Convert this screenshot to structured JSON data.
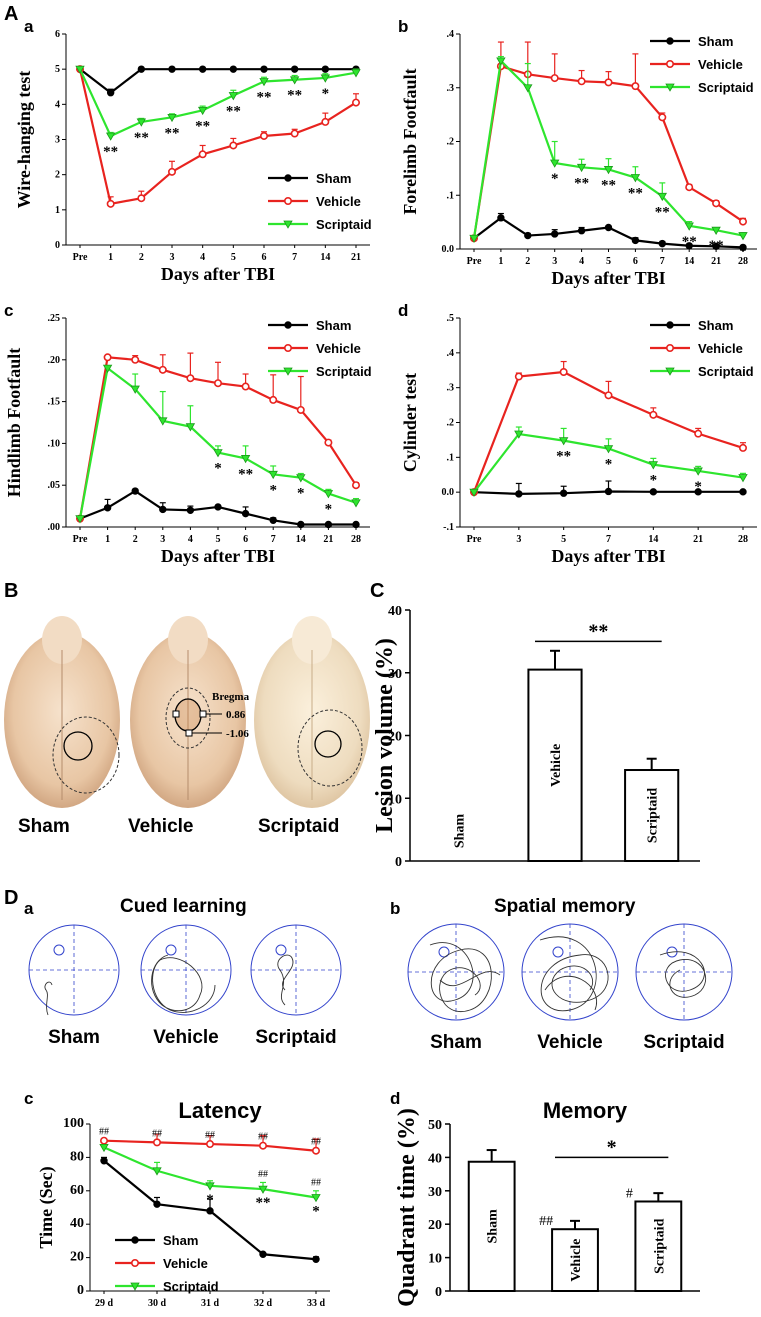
{
  "panel_labels": {
    "A": "A",
    "B": "B",
    "C": "C",
    "D": "D",
    "a": "a",
    "b": "b",
    "c": "c",
    "d": "d"
  },
  "colors": {
    "sham": "#000000",
    "vehicle": "#e8231f",
    "scriptaid": "#2ee52e",
    "track_circle": "#3344cc"
  },
  "chart_data": [
    {
      "id": "Aa",
      "type": "line",
      "xlabel": "Days after TBI",
      "ylabel": "Wire-hanging test",
      "categories": [
        "Pre",
        "1",
        "2",
        "3",
        "4",
        "5",
        "6",
        "7",
        "14",
        "21"
      ],
      "yticks": [
        "0",
        "1",
        "2",
        "3",
        "4",
        "5",
        "6"
      ],
      "ylim": [
        0,
        6
      ],
      "legend_position": "bottom-right",
      "series": [
        {
          "name": "Sham",
          "key": "sham",
          "values": [
            5,
            4.33,
            5,
            5,
            5,
            5,
            5,
            5,
            5,
            5
          ],
          "errors": [
            0,
            0.1,
            0,
            0,
            0,
            0,
            0,
            0,
            0,
            0
          ]
        },
        {
          "name": "Vehicle",
          "key": "vehicle",
          "values": [
            5,
            1.17,
            1.33,
            2.08,
            2.58,
            2.83,
            3.1,
            3.17,
            3.5,
            4.05
          ],
          "errors": [
            0,
            0.2,
            0.2,
            0.3,
            0.25,
            0.2,
            0.12,
            0.12,
            0.25,
            0.25
          ]
        },
        {
          "name": "Scriptaid",
          "key": "scriptaid",
          "values": [
            5,
            3.1,
            3.5,
            3.63,
            3.83,
            4.25,
            4.65,
            4.7,
            4.75,
            4.9
          ],
          "errors": [
            0,
            0.1,
            0.1,
            0.1,
            0.12,
            0.15,
            0.12,
            0.12,
            0.12,
            0.1
          ]
        }
      ],
      "annotations": [
        {
          "i": 1,
          "text": "**"
        },
        {
          "i": 2,
          "text": "**"
        },
        {
          "i": 3,
          "text": "**"
        },
        {
          "i": 4,
          "text": "**"
        },
        {
          "i": 5,
          "text": "**"
        },
        {
          "i": 6,
          "text": "**"
        },
        {
          "i": 7,
          "text": "**"
        },
        {
          "i": 8,
          "text": "*"
        }
      ]
    },
    {
      "id": "Ab",
      "type": "line",
      "xlabel": "Days after TBI",
      "ylabel": "Forelimb Footfault",
      "categories": [
        "Pre",
        "1",
        "2",
        "3",
        "4",
        "5",
        "6",
        "7",
        "14",
        "21",
        "28"
      ],
      "yticks": [
        "0.0",
        ".1",
        ".2",
        ".3",
        ".4"
      ],
      "ylim": [
        0,
        0.4
      ],
      "legend_position": "top-right",
      "series": [
        {
          "name": "Sham",
          "key": "sham",
          "values": [
            0.02,
            0.058,
            0.025,
            0.028,
            0.034,
            0.04,
            0.016,
            0.01,
            0.006,
            0.005,
            0.003
          ],
          "errors": [
            0,
            0.008,
            0.004,
            0.008,
            0.006,
            0.003,
            0.005,
            0.004,
            0.003,
            0.003,
            0.002
          ]
        },
        {
          "name": "Vehicle",
          "key": "vehicle",
          "values": [
            0.02,
            0.34,
            0.325,
            0.318,
            0.312,
            0.31,
            0.303,
            0.245,
            0.115,
            0.085,
            0.051
          ],
          "errors": [
            0,
            0.045,
            0.06,
            0.045,
            0.02,
            0.02,
            0.06,
            0.008,
            0.005,
            0.005,
            0.006
          ]
        },
        {
          "name": "Scriptaid",
          "key": "scriptaid",
          "values": [
            0.02,
            0.35,
            0.3,
            0.16,
            0.152,
            0.148,
            0.133,
            0.098,
            0.043,
            0.035,
            0.025
          ],
          "errors": [
            0,
            0.008,
            0.045,
            0.04,
            0.015,
            0.02,
            0.02,
            0.025,
            0.008,
            0.004,
            0.005
          ]
        }
      ],
      "annotations": [
        {
          "i": 3,
          "text": "*"
        },
        {
          "i": 4,
          "text": "**"
        },
        {
          "i": 5,
          "text": "**"
        },
        {
          "i": 6,
          "text": "**"
        },
        {
          "i": 7,
          "text": "**"
        },
        {
          "i": 8,
          "text": "**"
        },
        {
          "i": 9,
          "text": "**"
        },
        {
          "i": 10,
          "text": "*"
        }
      ]
    },
    {
      "id": "Ac",
      "type": "line",
      "xlabel": "Days after TBI",
      "ylabel": "Hindlimb Footfault",
      "categories": [
        "Pre",
        "1",
        "2",
        "3",
        "4",
        "5",
        "6",
        "7",
        "14",
        "21",
        "28"
      ],
      "yticks": [
        ".00",
        ".05",
        ".10",
        ".15",
        ".20",
        ".25"
      ],
      "ylim": [
        0,
        0.25
      ],
      "legend_position": "top-right",
      "series": [
        {
          "name": "Sham",
          "key": "sham",
          "values": [
            0.01,
            0.023,
            0.043,
            0.021,
            0.02,
            0.024,
            0.016,
            0.008,
            0.003,
            0.003,
            0.003
          ],
          "errors": [
            0,
            0.01,
            0.002,
            0.008,
            0.005,
            0.002,
            0.008,
            0.003,
            0.002,
            0.001,
            0.001
          ]
        },
        {
          "name": "Vehicle",
          "key": "vehicle",
          "values": [
            0.01,
            0.203,
            0.2,
            0.188,
            0.178,
            0.172,
            0.168,
            0.152,
            0.14,
            0.101,
            0.05
          ],
          "errors": [
            0,
            0.002,
            0.005,
            0.018,
            0.03,
            0.025,
            0.015,
            0.03,
            0.04,
            0.003,
            0.003
          ]
        },
        {
          "name": "Scriptaid",
          "key": "scriptaid",
          "values": [
            0.01,
            0.19,
            0.165,
            0.127,
            0.12,
            0.089,
            0.082,
            0.063,
            0.059,
            0.04,
            0.029
          ],
          "errors": [
            0,
            0.003,
            0.018,
            0.035,
            0.025,
            0.008,
            0.015,
            0.01,
            0.005,
            0.005,
            0.005
          ]
        }
      ],
      "annotations": [
        {
          "i": 5,
          "text": "*"
        },
        {
          "i": 6,
          "text": "**"
        },
        {
          "i": 7,
          "text": "*"
        },
        {
          "i": 8,
          "text": "*"
        },
        {
          "i": 9,
          "text": "*"
        }
      ]
    },
    {
      "id": "Ad",
      "type": "line",
      "xlabel": "Days after TBI",
      "ylabel": "Cylinder test",
      "categories": [
        "Pre",
        "3",
        "5",
        "7",
        "14",
        "21",
        "28"
      ],
      "yticks": [
        "-.1",
        "0.0",
        ".1",
        ".2",
        ".3",
        ".4",
        ".5"
      ],
      "ylim": [
        -0.1,
        0.5
      ],
      "legend_position": "top-right",
      "series": [
        {
          "name": "Sham",
          "key": "sham",
          "values": [
            0,
            -0.005,
            -0.003,
            0.002,
            0.001,
            0.001,
            0.001
          ],
          "errors": [
            0,
            0.03,
            0.02,
            0.03,
            0.002,
            0.002,
            0.002
          ]
        },
        {
          "name": "Vehicle",
          "key": "vehicle",
          "values": [
            0,
            0.332,
            0.345,
            0.278,
            0.222,
            0.168,
            0.127
          ],
          "errors": [
            0,
            0.01,
            0.03,
            0.04,
            0.02,
            0.015,
            0.015
          ]
        },
        {
          "name": "Scriptaid",
          "key": "scriptaid",
          "values": [
            0,
            0.167,
            0.148,
            0.125,
            0.079,
            0.061,
            0.042
          ],
          "errors": [
            0,
            0.02,
            0.035,
            0.028,
            0.018,
            0.013,
            0.012
          ]
        }
      ],
      "annotations": [
        {
          "i": 2,
          "text": "**"
        },
        {
          "i": 3,
          "text": "*"
        },
        {
          "i": 4,
          "text": "*"
        },
        {
          "i": 5,
          "text": "*"
        }
      ]
    },
    {
      "id": "C",
      "type": "bar",
      "ylabel": "Lesion volume (%)",
      "categories": [
        "Sham",
        "Vehicle",
        "Scriptaid"
      ],
      "values": [
        0,
        30.5,
        14.5
      ],
      "errors": [
        0,
        3,
        1.8
      ],
      "yticks": [
        "0",
        "10",
        "20",
        "30",
        "40"
      ],
      "ylim": [
        0,
        40
      ],
      "significance": "**"
    },
    {
      "id": "Dc",
      "type": "line",
      "title": "Latency",
      "ylabel": "Time (Sec)",
      "categories": [
        "29 d",
        "30 d",
        "31 d",
        "32 d",
        "33 d"
      ],
      "yticks": [
        "0",
        "20",
        "40",
        "60",
        "80",
        "100"
      ],
      "ylim": [
        0,
        100
      ],
      "legend_position": "bottom-left",
      "series": [
        {
          "name": "Sham",
          "key": "sham",
          "values": [
            78,
            52,
            48,
            22,
            19
          ],
          "errors": [
            2,
            4,
            7,
            1,
            1.5
          ]
        },
        {
          "name": "Vehicle",
          "key": "vehicle",
          "values": [
            90,
            89,
            88,
            87,
            84
          ],
          "errors": [
            0,
            5,
            5,
            6,
            7
          ]
        },
        {
          "name": "Scriptaid",
          "key": "scriptaid",
          "values": [
            86,
            72,
            63,
            61,
            56
          ],
          "errors": [
            0,
            5,
            3,
            4,
            4
          ]
        }
      ],
      "vehicle_marks": [
        "##",
        "##",
        "##",
        "##",
        "##"
      ],
      "scriptaid_marks": [
        {
          "i": 3,
          "text": "##"
        },
        {
          "i": 4,
          "text": "##"
        }
      ],
      "star_marks": [
        {
          "i": 2,
          "text": "*"
        },
        {
          "i": 3,
          "text": "**"
        },
        {
          "i": 4,
          "text": "*"
        }
      ]
    },
    {
      "id": "Dd",
      "type": "bar",
      "title": "Memory",
      "ylabel": "Quadrant time (%)",
      "categories": [
        "Sham",
        "Vehicle",
        "Scriptaid"
      ],
      "values": [
        38.7,
        18.5,
        26.8
      ],
      "errors": [
        3.5,
        2.5,
        2.5
      ],
      "yticks": [
        "0",
        "10",
        "20",
        "30",
        "40",
        "50"
      ],
      "ylim": [
        0,
        50
      ],
      "marks": [
        "",
        "##",
        "#"
      ],
      "significance": "*"
    }
  ],
  "photo_labels": {
    "sham": "Sham",
    "vehicle": "Vehicle",
    "scriptaid": "Scriptaid",
    "bregma": "Bregma",
    "bregma_plus": "0.86",
    "bregma_minus": "-1.06"
  },
  "tracks": {
    "cued_title": "Cued learning",
    "spatial_title": "Spatial memory",
    "labels": [
      "Sham",
      "Vehicle",
      "Scriptaid"
    ]
  }
}
